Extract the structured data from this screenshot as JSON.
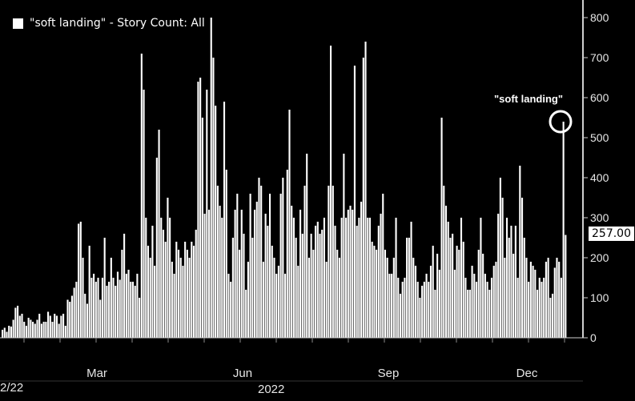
{
  "chart_data": {
    "type": "bar",
    "legend_label": "\"soft landing\" - Story Count: All",
    "start_label": "2/22",
    "x_axis_year": "2022",
    "x_ticks": [
      "Mar",
      "Jun",
      "Sep",
      "Dec"
    ],
    "y_ticks": [
      0,
      100,
      200,
      300,
      400,
      500,
      600,
      700,
      800
    ],
    "ylim": [
      0,
      820
    ],
    "last_value": "257.00",
    "annotation": "\"soft landing\"",
    "colors": {
      "background": "#000000",
      "bars": "#ffffff",
      "axis_text": "#e6e6e6"
    },
    "values": [
      20,
      25,
      15,
      30,
      28,
      45,
      75,
      80,
      55,
      60,
      40,
      30,
      50,
      45,
      40,
      35,
      45,
      60,
      35,
      40,
      40,
      65,
      55,
      40,
      60,
      55,
      35,
      55,
      60,
      30,
      95,
      90,
      105,
      125,
      140,
      285,
      290,
      200,
      110,
      85,
      230,
      150,
      160,
      140,
      150,
      95,
      150,
      250,
      130,
      140,
      200,
      150,
      130,
      165,
      145,
      220,
      260,
      160,
      170,
      140,
      140,
      130,
      160,
      100,
      710,
      620,
      300,
      230,
      200,
      280,
      180,
      450,
      520,
      300,
      270,
      240,
      350,
      300,
      190,
      160,
      240,
      220,
      200,
      180,
      240,
      220,
      200,
      240,
      230,
      270,
      640,
      650,
      550,
      310,
      620,
      320,
      800,
      700,
      580,
      380,
      330,
      300,
      590,
      420,
      160,
      140,
      250,
      320,
      360,
      220,
      320,
      260,
      120,
      190,
      360,
      250,
      320,
      340,
      400,
      380,
      190,
      310,
      280,
      360,
      230,
      200,
      160,
      180,
      360,
      400,
      160,
      420,
      570,
      330,
      300,
      250,
      180,
      320,
      260,
      380,
      460,
      200,
      260,
      220,
      280,
      290,
      260,
      270,
      300,
      190,
      380,
      730,
      380,
      280,
      220,
      200,
      300,
      460,
      300,
      320,
      330,
      320,
      680,
      280,
      300,
      340,
      700,
      740,
      300,
      300,
      240,
      230,
      220,
      280,
      310,
      360,
      220,
      200,
      160,
      160,
      200,
      300,
      150,
      110,
      140,
      150,
      250,
      250,
      290,
      200,
      180,
      140,
      100,
      130,
      140,
      160,
      140,
      180,
      230,
      120,
      210,
      170,
      550,
      380,
      330,
      290,
      250,
      260,
      170,
      230,
      220,
      300,
      240,
      150,
      120,
      120,
      180,
      160,
      140,
      220,
      300,
      210,
      160,
      140,
      120,
      150,
      180,
      190,
      310,
      400,
      350,
      200,
      300,
      250,
      280,
      210,
      280,
      150,
      430,
      350,
      250,
      200,
      140,
      190,
      180,
      170,
      120,
      150,
      140,
      150,
      190,
      200,
      100,
      110,
      175,
      200,
      190,
      150,
      540,
      257
    ]
  }
}
